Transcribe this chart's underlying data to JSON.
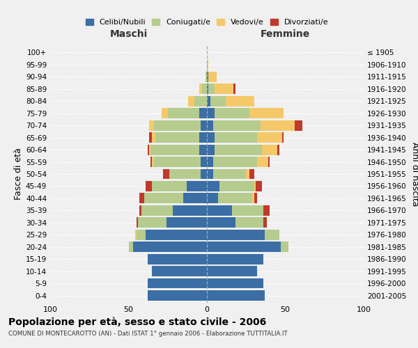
{
  "age_groups": [
    "0-4",
    "5-9",
    "10-14",
    "15-19",
    "20-24",
    "25-29",
    "30-34",
    "35-39",
    "40-44",
    "45-49",
    "50-54",
    "55-59",
    "60-64",
    "65-69",
    "70-74",
    "75-79",
    "80-84",
    "85-89",
    "90-94",
    "95-99",
    "100+"
  ],
  "birth_years": [
    "2001-2005",
    "1996-2000",
    "1991-1995",
    "1986-1990",
    "1981-1985",
    "1976-1980",
    "1971-1975",
    "1966-1970",
    "1961-1965",
    "1956-1960",
    "1951-1955",
    "1946-1950",
    "1941-1945",
    "1936-1940",
    "1931-1935",
    "1926-1930",
    "1921-1925",
    "1916-1920",
    "1911-1915",
    "1906-1910",
    "≤ 1905"
  ],
  "male_celibe": [
    38,
    38,
    35,
    38,
    47,
    39,
    26,
    22,
    15,
    13,
    4,
    4,
    5,
    5,
    4,
    5,
    0,
    0,
    0,
    0,
    0
  ],
  "male_coniugato": [
    0,
    0,
    0,
    0,
    3,
    6,
    18,
    20,
    25,
    22,
    20,
    30,
    31,
    28,
    30,
    20,
    8,
    3,
    1,
    0,
    0
  ],
  "male_vedovo": [
    0,
    0,
    0,
    0,
    0,
    1,
    0,
    0,
    0,
    0,
    0,
    1,
    1,
    2,
    3,
    4,
    4,
    2,
    0,
    0,
    0
  ],
  "male_divorziato": [
    0,
    0,
    0,
    0,
    0,
    0,
    1,
    1,
    3,
    4,
    4,
    1,
    1,
    2,
    0,
    0,
    0,
    0,
    0,
    0,
    0
  ],
  "female_celibe": [
    37,
    36,
    32,
    36,
    47,
    37,
    18,
    16,
    7,
    8,
    4,
    4,
    5,
    5,
    4,
    5,
    2,
    1,
    1,
    0,
    0
  ],
  "female_coniugato": [
    0,
    0,
    0,
    0,
    5,
    9,
    18,
    20,
    22,
    22,
    21,
    28,
    30,
    27,
    30,
    22,
    10,
    4,
    0,
    0,
    0
  ],
  "female_vedovo": [
    0,
    0,
    0,
    0,
    0,
    0,
    0,
    0,
    1,
    1,
    2,
    7,
    10,
    16,
    22,
    22,
    18,
    12,
    5,
    1,
    0
  ],
  "female_divorziato": [
    0,
    0,
    0,
    0,
    0,
    0,
    2,
    4,
    2,
    4,
    3,
    1,
    1,
    1,
    5,
    0,
    0,
    1,
    0,
    0,
    0
  ],
  "color_celibe": "#3b6ea5",
  "color_coniugato": "#b5cc8e",
  "color_vedovo": "#f5c96a",
  "color_divorziato": "#c0392b",
  "title": "Popolazione per età, sesso e stato civile - 2006",
  "subtitle": "COMUNE DI MONTECAROTTO (AN) - Dati ISTAT 1° gennaio 2006 - Elaborazione TUTTITALIA.IT",
  "xlabel_left": "Maschi",
  "xlabel_right": "Femmine",
  "ylabel_left": "Fasce di età",
  "ylabel_right": "Anni di nascita",
  "xlim": 100,
  "background_color": "#f0f0f0",
  "bar_height": 0.85
}
